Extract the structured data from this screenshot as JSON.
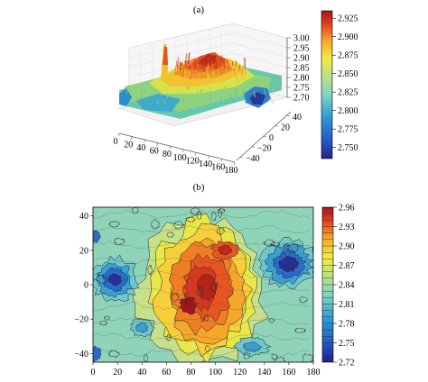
{
  "panels": {
    "a_label": "(a)",
    "b_label": "(b)"
  },
  "chart_data": [
    {
      "panel": "(a)",
      "type": "surface3d",
      "x_ticks": [
        "0",
        "20",
        "40",
        "60",
        "80",
        "100",
        "120",
        "140",
        "160",
        "180"
      ],
      "y_ticks": [
        "−40",
        "−20",
        "0",
        "20",
        "40"
      ],
      "z_ticks": [
        "2.70",
        "2.75",
        "2.80",
        "2.85",
        "2.90",
        "2.95",
        "3.00"
      ],
      "xlim": [
        0,
        180
      ],
      "ylim": [
        -45,
        45
      ],
      "zlim": [
        2.7,
        3.0
      ],
      "colorbar": {
        "ticks": [
          "2.750",
          "2.775",
          "2.800",
          "2.825",
          "2.850",
          "2.875",
          "2.900",
          "2.925"
        ],
        "range": [
          2.735,
          2.935
        ]
      },
      "colormap": [
        "#2b1f8a",
        "#2457c6",
        "#2e9bd6",
        "#7dd0c6",
        "#b8e08a",
        "#f4ea3c",
        "#f7a62b",
        "#e8471f",
        "#a4161b"
      ]
    },
    {
      "panel": "(b)",
      "type": "contour",
      "x_ticks": [
        "0",
        "20",
        "40",
        "60",
        "80",
        "100",
        "120",
        "140",
        "160",
        "180"
      ],
      "y_ticks": [
        "40",
        "20",
        "0",
        "−20",
        "−40"
      ],
      "xlim": [
        0,
        180
      ],
      "ylim": [
        -45,
        45
      ],
      "colorbar": {
        "ticks": [
          "2.96",
          "2.93",
          "2.90",
          "2.87",
          "2.84",
          "2.81",
          "2.78",
          "2.75",
          "2.72"
        ],
        "range": [
          2.72,
          2.96
        ]
      },
      "features": [
        {
          "x": 88,
          "y": -8,
          "value": 2.95,
          "kind": "high"
        },
        {
          "x": 105,
          "y": 18,
          "value": 2.9,
          "kind": "high"
        },
        {
          "x": 20,
          "y": 2,
          "value": 2.74,
          "kind": "low"
        },
        {
          "x": 160,
          "y": 12,
          "value": 2.73,
          "kind": "low"
        },
        {
          "x": 40,
          "y": -25,
          "value": 2.77,
          "kind": "low"
        },
        {
          "x": 130,
          "y": -35,
          "value": 2.78,
          "kind": "low"
        }
      ],
      "colormap": [
        "#2b1f8a",
        "#2457c6",
        "#2e9bd6",
        "#7dd0c6",
        "#b8e08a",
        "#f4ea3c",
        "#f7a62b",
        "#e8471f",
        "#a4161b"
      ]
    }
  ]
}
